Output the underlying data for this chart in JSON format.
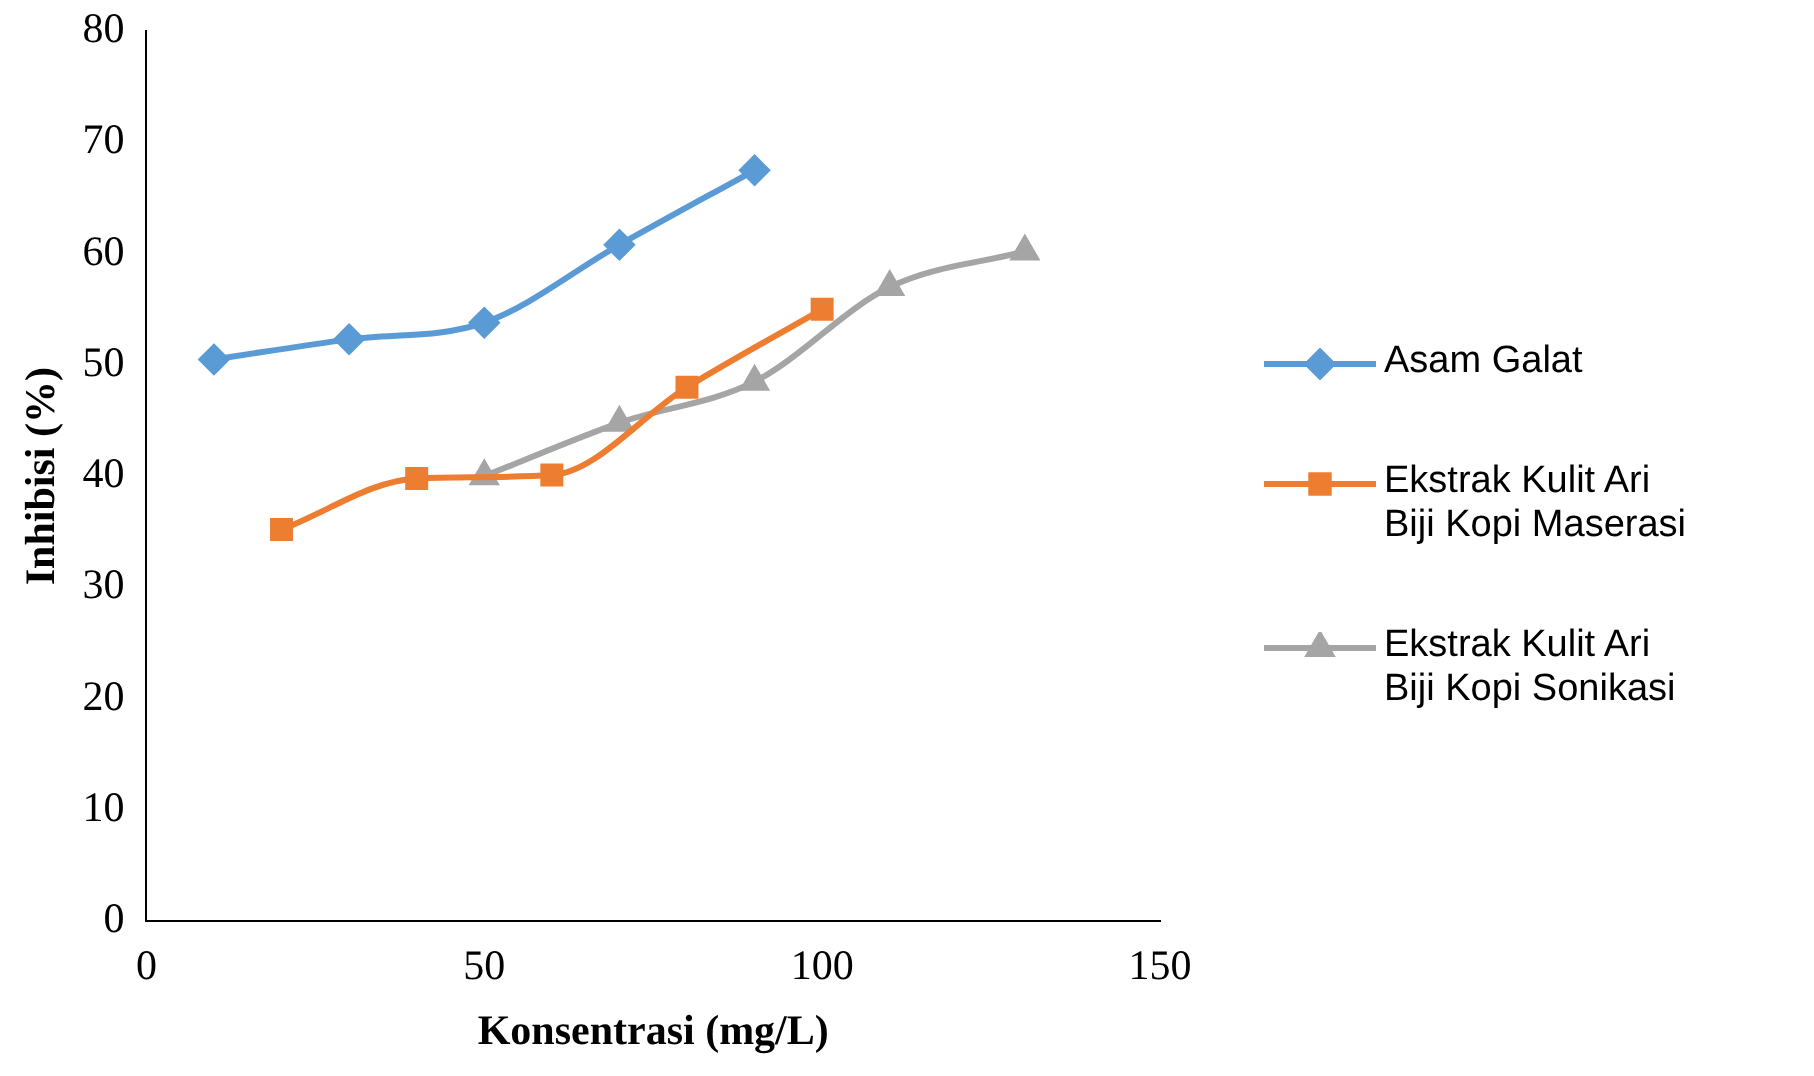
{
  "chart_data": {
    "type": "line",
    "xlabel": "Konsentrasi (mg/L)",
    "ylabel": "Inhibisi (%)",
    "xlim": [
      0,
      150
    ],
    "xticks": [
      0,
      50,
      100,
      150
    ],
    "ylim": [
      0,
      80
    ],
    "yticks": [
      0,
      10,
      20,
      30,
      40,
      50,
      60,
      70,
      80
    ],
    "grid": false,
    "legend": "right",
    "series": [
      {
        "name": "Asam Galat",
        "color": "#5b9bd5",
        "marker": "diamond",
        "x": [
          10,
          30,
          50,
          70,
          90
        ],
        "values": [
          50.5,
          52.3,
          53.8,
          60.8,
          67.5
        ]
      },
      {
        "name": "Ekstrak Kulit Ari Biji Kopi Maserasi",
        "color": "#ed7d31",
        "marker": "square",
        "x": [
          20,
          40,
          60,
          80,
          100
        ],
        "values": [
          35.2,
          39.8,
          40.1,
          48.0,
          55.0
        ]
      },
      {
        "name": "Ekstrak Kulit Ari Biji Kopi Sonikasi",
        "color": "#a5a5a5",
        "marker": "triangle",
        "x": [
          50,
          70,
          90,
          110,
          130
        ],
        "values": [
          40.0,
          44.8,
          48.5,
          57.0,
          60.2
        ]
      }
    ]
  }
}
